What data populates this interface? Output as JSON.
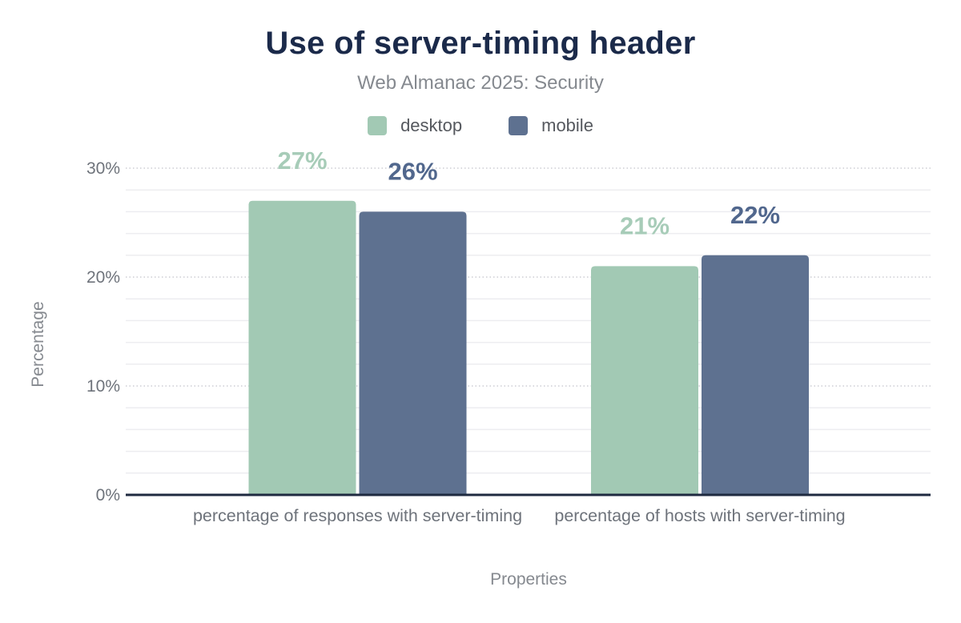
{
  "title": "Use of server-timing header",
  "subtitle": "Web Almanac 2025: Security",
  "colors": {
    "title_text": "#1b2a4a",
    "axis_line": "#1f2a40",
    "desktop": "#a2c9b4",
    "mobile": "#5e7190",
    "desktop_label": "#a7ccb8",
    "mobile_label": "#51678d",
    "grid_minor": "#ededf0",
    "grid_major": "#cdced4",
    "tick_text": "#6e737b",
    "muted_text": "#85898f",
    "legend_text": "#55585e"
  },
  "chart_data": {
    "type": "bar",
    "title": "Use of server-timing header",
    "subtitle": "Web Almanac 2025: Security",
    "categories": [
      "percentage of responses with server-timing",
      "percentage of hosts with server-timing"
    ],
    "series": [
      {
        "name": "desktop",
        "values": [
          27,
          21
        ]
      },
      {
        "name": "mobile",
        "values": [
          26,
          22
        ]
      }
    ],
    "value_label_format": "{v}%",
    "xlabel": "Properties",
    "ylabel": "Percentage",
    "ylim": [
      0,
      30
    ],
    "yticks": [
      0,
      10,
      20,
      30
    ],
    "ytick_format": "{v}%",
    "minor_grid_step": 2,
    "grid": true,
    "legend_position": "top"
  }
}
